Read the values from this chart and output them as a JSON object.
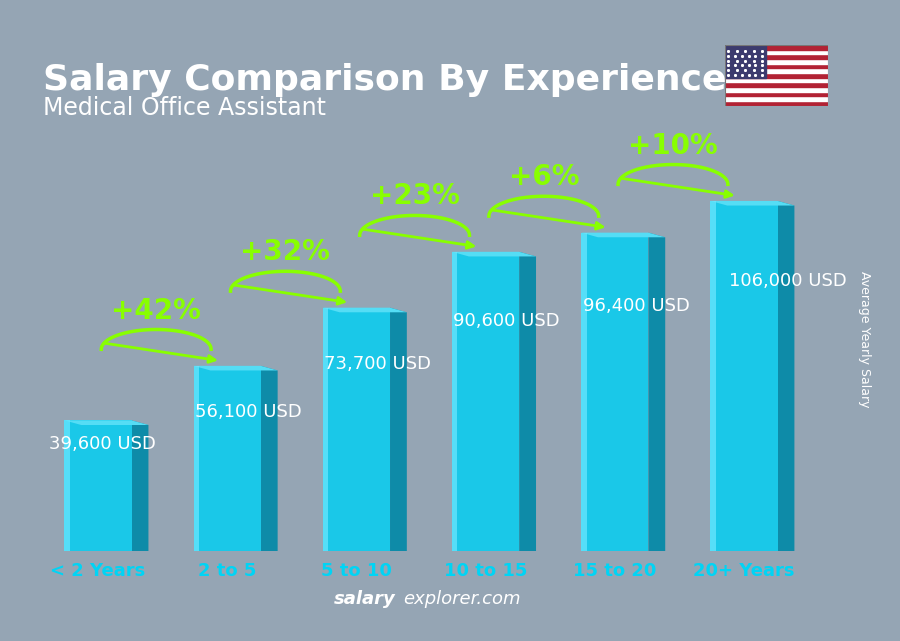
{
  "title": "Salary Comparison By Experience",
  "subtitle": "Medical Office Assistant",
  "categories": [
    "< 2 Years",
    "2 to 5",
    "5 to 10",
    "10 to 15",
    "15 to 20",
    "20+ Years"
  ],
  "values": [
    39600,
    56100,
    73700,
    90600,
    96400,
    106000
  ],
  "labels": [
    "39,600 USD",
    "56,100 USD",
    "73,700 USD",
    "90,600 USD",
    "96,400 USD",
    "106,000 USD"
  ],
  "pct_changes": [
    "+42%",
    "+32%",
    "+23%",
    "+6%",
    "+10%"
  ],
  "bar_face_color": "#1ac8e8",
  "bar_side_color": "#0e8ba8",
  "bar_top_color": "#55ddf5",
  "bar_highlight": "#70e8ff",
  "ylabel": "Average Yearly Salary",
  "footer_bold": "salary",
  "footer_normal": "explorer.com",
  "bg_color": "#8a9aaa",
  "ylim": [
    0,
    128000
  ],
  "bar_width": 0.52,
  "title_fontsize": 26,
  "subtitle_fontsize": 17,
  "tick_fontsize": 13,
  "label_fontsize": 13,
  "pct_fontsize": 20,
  "pct_color": "#88ff00",
  "label_color": "white",
  "tick_color": "#00d4f5"
}
